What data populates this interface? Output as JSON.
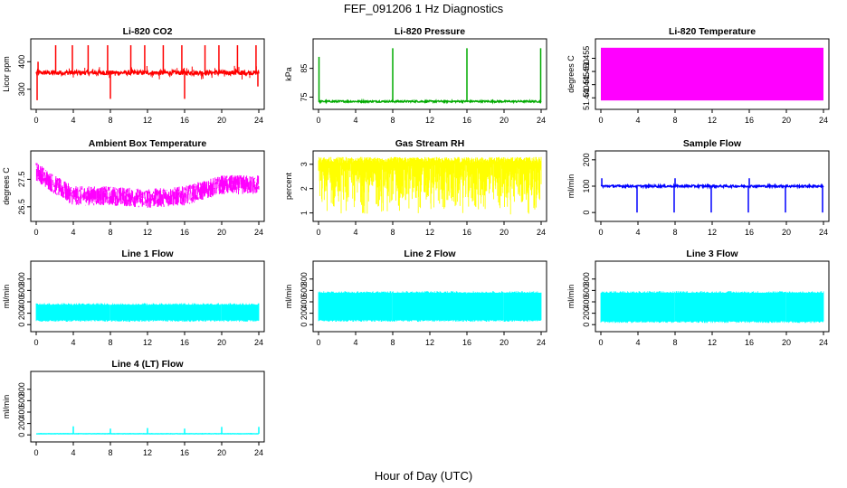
{
  "figure": {
    "title": "FEF_091206  1 Hz Diagnostics",
    "xlabel": "Hour of Day (UTC)"
  },
  "chart_data": [
    {
      "type": "line",
      "title": "Li-820 CO2",
      "ylabel": "Licor ppm",
      "color": "#ff0000",
      "xlim": [
        0,
        24
      ],
      "ylim": [
        240,
        470
      ],
      "xticks": [
        0,
        4,
        8,
        12,
        16,
        20,
        24
      ],
      "yticks": [
        300,
        400
      ],
      "baseline": 360,
      "noise": 8,
      "spikes_up": [
        [
          0.2,
          400
        ],
        [
          2.1,
          460
        ],
        [
          3.9,
          460
        ],
        [
          5.6,
          460
        ],
        [
          7.7,
          460
        ],
        [
          10.2,
          460
        ],
        [
          11.7,
          460
        ],
        [
          13.7,
          460
        ],
        [
          15.7,
          460
        ],
        [
          18.2,
          460
        ],
        [
          19.7,
          460
        ],
        [
          21.7,
          460
        ],
        [
          23.7,
          460
        ]
      ],
      "spikes_down": [
        [
          0.1,
          260
        ],
        [
          8.0,
          265
        ],
        [
          16.0,
          265
        ],
        [
          23.9,
          310
        ]
      ]
    },
    {
      "type": "line",
      "title": "Li-820 Pressure",
      "ylabel": "kPa",
      "color": "#00aa00",
      "xlim": [
        0,
        24
      ],
      "ylim": [
        72,
        94
      ],
      "xticks": [
        0,
        4,
        8,
        12,
        16,
        20,
        24
      ],
      "yticks": [
        75,
        85
      ],
      "baseline": 73.5,
      "noise": 0.3,
      "spikes_up": [
        [
          0.05,
          89
        ],
        [
          8.0,
          92
        ],
        [
          16.0,
          92
        ],
        [
          23.95,
          92
        ]
      ],
      "spikes_down": []
    },
    {
      "type": "area",
      "title": "Li-820 Temperature",
      "ylabel": "degrees C",
      "color": "#ff00ff",
      "xlim": [
        0,
        24
      ],
      "ylim": [
        51.437,
        51.461
      ],
      "xticks": [
        0,
        4,
        8,
        12,
        16,
        20,
        24
      ],
      "yticks": [
        51.44,
        51.445,
        51.45,
        51.455
      ],
      "band_low": 51.439,
      "band_high": 51.459
    },
    {
      "type": "line",
      "title": "Ambient Box Temperature",
      "ylabel": "degrees C",
      "color": "#ff00ff",
      "xlim": [
        0,
        24
      ],
      "ylim": [
        26.1,
        28.4
      ],
      "xticks": [
        0,
        4,
        8,
        12,
        16,
        20,
        24
      ],
      "yticks": [
        26.5,
        27.5
      ],
      "trend_x": [
        0,
        2,
        4,
        8,
        12,
        16,
        20,
        24
      ],
      "trend_y": [
        27.8,
        27.3,
        26.9,
        26.9,
        26.8,
        26.9,
        27.3,
        27.3
      ],
      "noise": 0.35
    },
    {
      "type": "line",
      "title": "Gas Stream RH",
      "ylabel": "percent",
      "color": "#ffff00",
      "xlim": [
        0,
        24
      ],
      "ylim": [
        0.8,
        3.4
      ],
      "xticks": [
        0,
        4,
        8,
        12,
        16,
        20,
        24
      ],
      "yticks": [
        1.0,
        2.0,
        3.0
      ],
      "band_low": 0.9,
      "band_high": 3.3
    },
    {
      "type": "line",
      "title": "Sample Flow",
      "ylabel": "ml/min",
      "color": "#0000ff",
      "xlim": [
        0,
        24
      ],
      "ylim": [
        -20,
        220
      ],
      "xticks": [
        0,
        4,
        8,
        12,
        16,
        20,
        24
      ],
      "yticks": [
        0,
        100,
        200
      ],
      "baseline": 100,
      "noise": 4,
      "spikes_up": [
        [
          0.1,
          130
        ],
        [
          8.0,
          130
        ],
        [
          16.0,
          130
        ]
      ],
      "spikes_down": [
        [
          3.9,
          0
        ],
        [
          7.9,
          0
        ],
        [
          11.9,
          0
        ],
        [
          15.9,
          0
        ],
        [
          19.9,
          0
        ],
        [
          23.9,
          0
        ]
      ]
    },
    {
      "type": "area",
      "title": "Line 1 Flow",
      "ylabel": "ml/min",
      "color": "#00ffff",
      "xlim": [
        0,
        24
      ],
      "ylim": [
        -60,
        1050
      ],
      "xticks": [
        0,
        4,
        8,
        12,
        16,
        20,
        24
      ],
      "yticks": [
        0,
        200,
        400,
        600,
        800
      ],
      "band_low": 80,
      "band_high": 350,
      "gaps": [
        4,
        8,
        12,
        16,
        20
      ]
    },
    {
      "type": "area",
      "title": "Line 2 Flow",
      "ylabel": "ml/min",
      "color": "#00ffff",
      "xlim": [
        0,
        24
      ],
      "ylim": [
        -60,
        1050
      ],
      "xticks": [
        0,
        4,
        8,
        12,
        16,
        20,
        24
      ],
      "yticks": [
        0,
        200,
        400,
        600,
        800
      ],
      "band_low": 80,
      "band_high": 560,
      "gaps": [
        4,
        8,
        12,
        16,
        20
      ]
    },
    {
      "type": "area",
      "title": "Line 3 Flow",
      "ylabel": "ml/min",
      "color": "#00ffff",
      "xlim": [
        0,
        24
      ],
      "ylim": [
        -60,
        1050
      ],
      "xticks": [
        0,
        4,
        8,
        12,
        16,
        20,
        24
      ],
      "yticks": [
        0,
        200,
        400,
        600,
        800
      ],
      "band_low": 60,
      "band_high": 560,
      "gaps": [
        4,
        8,
        12,
        16,
        20
      ]
    },
    {
      "type": "line",
      "title": "Line 4 (LT) Flow",
      "ylabel": "ml/min",
      "color": "#00ffff",
      "xlim": [
        0,
        24
      ],
      "ylim": [
        -60,
        1050
      ],
      "xticks": [
        0,
        4,
        8,
        12,
        16,
        20,
        24
      ],
      "yticks": [
        0,
        200,
        400,
        600,
        800
      ],
      "baseline": 20,
      "noise": 3,
      "spikes_up": [
        [
          4.0,
          150
        ],
        [
          8.0,
          110
        ],
        [
          12.0,
          120
        ],
        [
          16.0,
          110
        ],
        [
          20.0,
          140
        ],
        [
          24.0,
          140
        ]
      ],
      "spikes_down": []
    }
  ]
}
